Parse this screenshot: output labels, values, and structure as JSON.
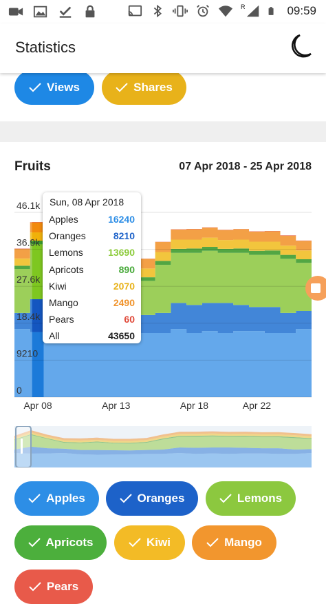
{
  "status_bar": {
    "time": "09:59",
    "signal_letter": "R"
  },
  "app_bar": {
    "title": "Statistics",
    "theme_icon": "moon-icon"
  },
  "top_filters": [
    {
      "label": "Views",
      "color": "#1e88e5"
    },
    {
      "label": "Shares",
      "color": "#e8b21a"
    }
  ],
  "chart": {
    "title": "Fruits",
    "date_range": "07 Apr 2018 - 25 Apr 2018"
  },
  "chart_data": {
    "type": "area",
    "stacked": true,
    "x": [
      "Apr 07",
      "Apr 08",
      "Apr 09",
      "Apr 10",
      "Apr 11",
      "Apr 12",
      "Apr 13",
      "Apr 14",
      "Apr 15",
      "Apr 16",
      "Apr 17",
      "Apr 18",
      "Apr 19",
      "Apr 20",
      "Apr 21",
      "Apr 22",
      "Apr 23",
      "Apr 24",
      "Apr 25"
    ],
    "x_ticks": [
      "Apr 08",
      "Apr 13",
      "Apr 18",
      "Apr 22"
    ],
    "y_ticks": [
      "0",
      "9210",
      "18.4k",
      "27.6k",
      "36.9k",
      "46.1k"
    ],
    "ylim": [
      0,
      46100
    ],
    "grid": true,
    "series": [
      {
        "name": "Apples",
        "color": "#64a8eb",
        "values": [
          17000,
          16240,
          16500,
          17000,
          15500,
          15000,
          15200,
          15500,
          16000,
          16000,
          17000,
          16000,
          16500,
          16000,
          16500,
          16500,
          16000,
          16000,
          17000
        ]
      },
      {
        "name": "Oranges",
        "color": "#4286d8",
        "values": [
          4000,
          8210,
          6000,
          5000,
          5000,
          5500,
          5000,
          4500,
          4500,
          5000,
          6500,
          7000,
          7000,
          7500,
          6500,
          6000,
          6500,
          5000,
          4500
        ]
      },
      {
        "name": "Lemons",
        "color": "#9ccf5a",
        "values": [
          11000,
          13690,
          11000,
          7000,
          8000,
          9000,
          8000,
          8000,
          8500,
          12000,
          12500,
          13000,
          13000,
          12500,
          13000,
          13000,
          13000,
          13500,
          12000
        ]
      },
      {
        "name": "Apricots",
        "color": "#52a643",
        "values": [
          800,
          890,
          700,
          900,
          800,
          900,
          800,
          900,
          900,
          1000,
          1000,
          1100,
          1000,
          1000,
          1100,
          1000,
          1100,
          1000,
          900
        ]
      },
      {
        "name": "Kiwi",
        "color": "#f2c53d",
        "values": [
          1800,
          2070,
          1900,
          2000,
          2200,
          2000,
          2100,
          2100,
          2200,
          2200,
          2300,
          2200,
          2300,
          2200,
          2200,
          2300,
          2200,
          2300,
          2200
        ]
      },
      {
        "name": "Mango",
        "color": "#f3a046",
        "values": [
          2400,
          2490,
          2300,
          2400,
          2500,
          2500,
          2400,
          2500,
          2400,
          2500,
          2500,
          2600,
          2500,
          2500,
          2600,
          2500,
          2600,
          2500,
          2400
        ]
      },
      {
        "name": "Pears",
        "color": "#e15241",
        "values": [
          60,
          60,
          50,
          70,
          60,
          50,
          60,
          70,
          60,
          50,
          60,
          70,
          60,
          60,
          50,
          60,
          60,
          70,
          60
        ]
      }
    ],
    "selected_index": 1
  },
  "tooltip": {
    "date": "Sun, 08 Apr 2018",
    "rows": [
      {
        "label": "Apples",
        "value": "16240",
        "color": "#2d8ee6"
      },
      {
        "label": "Oranges",
        "value": "8210",
        "color": "#1d62c9"
      },
      {
        "label": "Lemons",
        "value": "13690",
        "color": "#8ccb3b"
      },
      {
        "label": "Apricots",
        "value": "890",
        "color": "#46a938"
      },
      {
        "label": "Kiwi",
        "value": "2070",
        "color": "#e8b21a"
      },
      {
        "label": "Mango",
        "value": "2490",
        "color": "#f0932b"
      },
      {
        "label": "Pears",
        "value": "60",
        "color": "#e04a3a"
      },
      {
        "label": "All",
        "value": "43650",
        "color": "#222222"
      }
    ]
  },
  "series_filters": [
    {
      "label": "Apples",
      "color": "#2d8ee6"
    },
    {
      "label": "Oranges",
      "color": "#1d62c9"
    },
    {
      "label": "Lemons",
      "color": "#8cc83f"
    },
    {
      "label": "Apricots",
      "color": "#4caf3c"
    },
    {
      "label": "Kiwi",
      "color": "#f3bb26"
    },
    {
      "label": "Mango",
      "color": "#f2962e"
    },
    {
      "label": "Pears",
      "color": "#e85a4a"
    }
  ]
}
